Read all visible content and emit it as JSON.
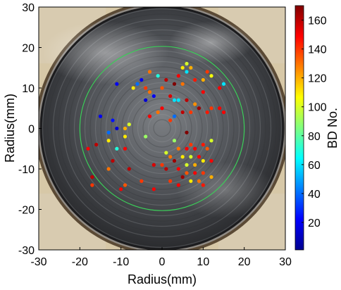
{
  "chart_data": {
    "type": "scatter",
    "background": "photograph of a circular polished metal specimen (electrode surface) inside a beige holder",
    "xlabel": "Radius(mm)",
    "ylabel": "Radius(mm)",
    "xlim": [
      -30,
      30
    ],
    "ylim": [
      -30,
      30
    ],
    "xticks": [
      -30,
      -20,
      -10,
      0,
      10,
      20,
      30
    ],
    "yticks": [
      -30,
      -20,
      -10,
      0,
      10,
      20,
      30
    ],
    "grid": false,
    "colorbar": {
      "label": "BD No.",
      "range": [
        1,
        170
      ],
      "ticks": [
        20,
        40,
        60,
        80,
        100,
        120,
        140,
        160
      ],
      "colormap": "jet",
      "position": "right"
    },
    "circles": [
      {
        "name": "green reference circle",
        "radius": 20,
        "color": "#3cd05a"
      }
    ],
    "points": [
      {
        "x": 6,
        "y": 16,
        "bd": 100
      },
      {
        "x": 7,
        "y": 15,
        "bd": 120
      },
      {
        "x": 5,
        "y": 15,
        "bd": 110
      },
      {
        "x": 6,
        "y": 14,
        "bd": 60
      },
      {
        "x": 11,
        "y": 14,
        "bd": 140
      },
      {
        "x": 12,
        "y": 13,
        "bd": 105
      },
      {
        "x": 4,
        "y": 13,
        "bd": 150
      },
      {
        "x": 8,
        "y": 12,
        "bd": 145
      },
      {
        "x": -1,
        "y": 13,
        "bd": 70
      },
      {
        "x": -3,
        "y": 14,
        "bd": 130
      },
      {
        "x": 1,
        "y": 12,
        "bd": 160
      },
      {
        "x": 3,
        "y": 11,
        "bd": 170
      },
      {
        "x": 5,
        "y": 11,
        "bd": 130
      },
      {
        "x": -6,
        "y": 11,
        "bd": 40
      },
      {
        "x": -11,
        "y": 11,
        "bd": 20
      },
      {
        "x": -7,
        "y": 10,
        "bd": 110
      },
      {
        "x": 14,
        "y": 10,
        "bd": 150
      },
      {
        "x": 15,
        "y": 11,
        "bd": 60
      },
      {
        "x": -3,
        "y": 9,
        "bd": 130
      },
      {
        "x": -2,
        "y": 8,
        "bd": 20
      },
      {
        "x": -4,
        "y": 7,
        "bd": 15
      },
      {
        "x": 2,
        "y": 8,
        "bd": 155
      },
      {
        "x": 3,
        "y": 7,
        "bd": 60
      },
      {
        "x": 4,
        "y": 7,
        "bd": 60
      },
      {
        "x": 6,
        "y": 7,
        "bd": 160
      },
      {
        "x": 8,
        "y": 6,
        "bd": 125
      },
      {
        "x": 9,
        "y": 5,
        "bd": 165
      },
      {
        "x": 12,
        "y": 5,
        "bd": 140
      },
      {
        "x": 14,
        "y": 5,
        "bd": 150
      },
      {
        "x": 15,
        "y": 4,
        "bd": 150
      },
      {
        "x": 0,
        "y": 5,
        "bd": 150
      },
      {
        "x": -1,
        "y": 4,
        "bd": 130
      },
      {
        "x": 5,
        "y": 4,
        "bd": 160
      },
      {
        "x": 7,
        "y": 4,
        "bd": 140
      },
      {
        "x": 11,
        "y": 4,
        "bd": 145
      },
      {
        "x": -3,
        "y": 3,
        "bd": 150
      },
      {
        "x": 3,
        "y": 3,
        "bd": 40
      },
      {
        "x": -12,
        "y": 2,
        "bd": 25
      },
      {
        "x": -11,
        "y": 0,
        "bd": 15
      },
      {
        "x": -9,
        "y": 0,
        "bd": 120
      },
      {
        "x": -13,
        "y": -1,
        "bd": 40
      },
      {
        "x": -8,
        "y": 1,
        "bd": 100
      },
      {
        "x": -15,
        "y": 3,
        "bd": 20
      },
      {
        "x": 6,
        "y": -1,
        "bd": 170
      },
      {
        "x": -4,
        "y": -2,
        "bd": 90
      },
      {
        "x": -9,
        "y": -2,
        "bd": 110
      },
      {
        "x": -16,
        "y": -4,
        "bd": 160
      },
      {
        "x": -13,
        "y": -3,
        "bd": 110
      },
      {
        "x": 3,
        "y": -3,
        "bd": 90
      },
      {
        "x": 7,
        "y": -4,
        "bd": 140
      },
      {
        "x": 10,
        "y": -4,
        "bd": 145
      },
      {
        "x": 12,
        "y": -3,
        "bd": 100
      },
      {
        "x": 4,
        "y": -5,
        "bd": 130
      },
      {
        "x": 6,
        "y": -5,
        "bd": 150
      },
      {
        "x": 8,
        "y": -5,
        "bd": 150
      },
      {
        "x": 11,
        "y": -5,
        "bd": 135
      },
      {
        "x": -9,
        "y": -5,
        "bd": 150
      },
      {
        "x": -11,
        "y": -5,
        "bd": 70
      },
      {
        "x": 1,
        "y": -6,
        "bd": 100
      },
      {
        "x": 2,
        "y": -7,
        "bd": 130
      },
      {
        "x": 5,
        "y": -7,
        "bd": 110
      },
      {
        "x": 7,
        "y": -7,
        "bd": 100
      },
      {
        "x": 9,
        "y": -7,
        "bd": 150
      },
      {
        "x": 10,
        "y": -8,
        "bd": 110
      },
      {
        "x": 12,
        "y": -8,
        "bd": 150
      },
      {
        "x": 3,
        "y": -8,
        "bd": 165
      },
      {
        "x": 6,
        "y": -9,
        "bd": 100
      },
      {
        "x": 8,
        "y": -9,
        "bd": 120
      },
      {
        "x": 0,
        "y": -9,
        "bd": 140
      },
      {
        "x": -2,
        "y": -9,
        "bd": 155
      },
      {
        "x": 1,
        "y": -10,
        "bd": 160
      },
      {
        "x": 4,
        "y": -10,
        "bd": 150
      },
      {
        "x": 6,
        "y": -11,
        "bd": 135
      },
      {
        "x": 8,
        "y": -11,
        "bd": 150
      },
      {
        "x": 10,
        "y": -11,
        "bd": 140
      },
      {
        "x": 12,
        "y": -12,
        "bd": 120
      },
      {
        "x": 5,
        "y": -12,
        "bd": 165
      },
      {
        "x": 2,
        "y": -13,
        "bd": 140
      },
      {
        "x": 7,
        "y": -13,
        "bd": 110
      },
      {
        "x": 9,
        "y": -13,
        "bd": 130
      },
      {
        "x": 4,
        "y": -14,
        "bd": 150
      },
      {
        "x": 10,
        "y": -14,
        "bd": 145
      },
      {
        "x": -8,
        "y": -10,
        "bd": 160
      },
      {
        "x": -13,
        "y": -10,
        "bd": 130
      },
      {
        "x": -12,
        "y": -8,
        "bd": 160
      },
      {
        "x": -17,
        "y": -12,
        "bd": 160
      },
      {
        "x": -18,
        "y": -5,
        "bd": 150
      },
      {
        "x": -5,
        "y": -13,
        "bd": 140
      },
      {
        "x": -9,
        "y": -14,
        "bd": 135
      },
      {
        "x": -10,
        "y": -15,
        "bd": 150
      },
      {
        "x": -17,
        "y": -14,
        "bd": 140
      },
      {
        "x": -2,
        "y": -15,
        "bd": 150
      },
      {
        "x": -4,
        "y": 10,
        "bd": 140
      },
      {
        "x": 0,
        "y": 10,
        "bd": 135
      },
      {
        "x": 10,
        "y": 9,
        "bd": 150
      },
      {
        "x": 10,
        "y": 12,
        "bd": 120
      },
      {
        "x": -5,
        "y": 12,
        "bd": 20
      },
      {
        "x": 2,
        "y": 2,
        "bd": 140
      }
    ]
  }
}
